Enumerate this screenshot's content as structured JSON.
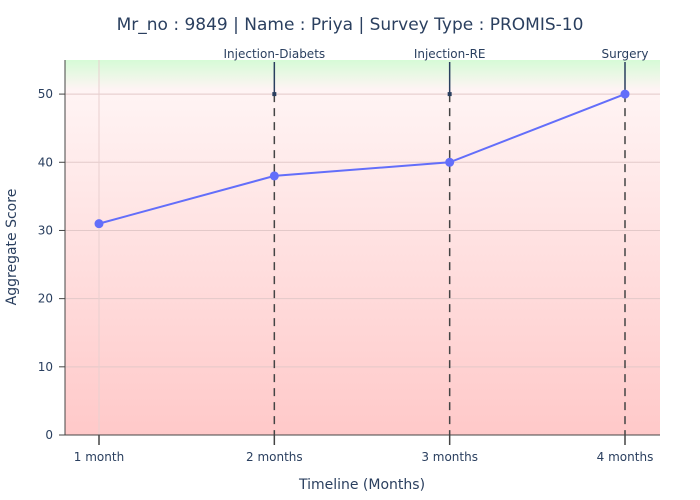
{
  "chart_data": {
    "type": "line",
    "title": "Mr_no : 9849 | Name : Priya | Survey Type : PROMIS-10",
    "xlabel": "Timeline (Months)",
    "ylabel": "Aggregate Score",
    "categories": [
      "1 month",
      "2 months",
      "3 months",
      "4 months"
    ],
    "series": [
      {
        "values": [
          31,
          38,
          40,
          50
        ],
        "color": "#636efa"
      }
    ],
    "ylim": [
      0,
      55
    ],
    "yticks": [
      0,
      10,
      20,
      30,
      40,
      50
    ],
    "grid": true,
    "background_gradient": {
      "top": "#d6fbd6",
      "middle": "#fff4f4",
      "bottom": "#ffc9c9"
    },
    "events": [
      {
        "label": "Injection-Diabets",
        "at": "2 months",
        "marker_y": 50
      },
      {
        "label": "Injection-RE",
        "at": "3 months",
        "marker_y": 50
      },
      {
        "label": "Surgery",
        "at": "4 months",
        "marker_y": 50
      }
    ]
  }
}
